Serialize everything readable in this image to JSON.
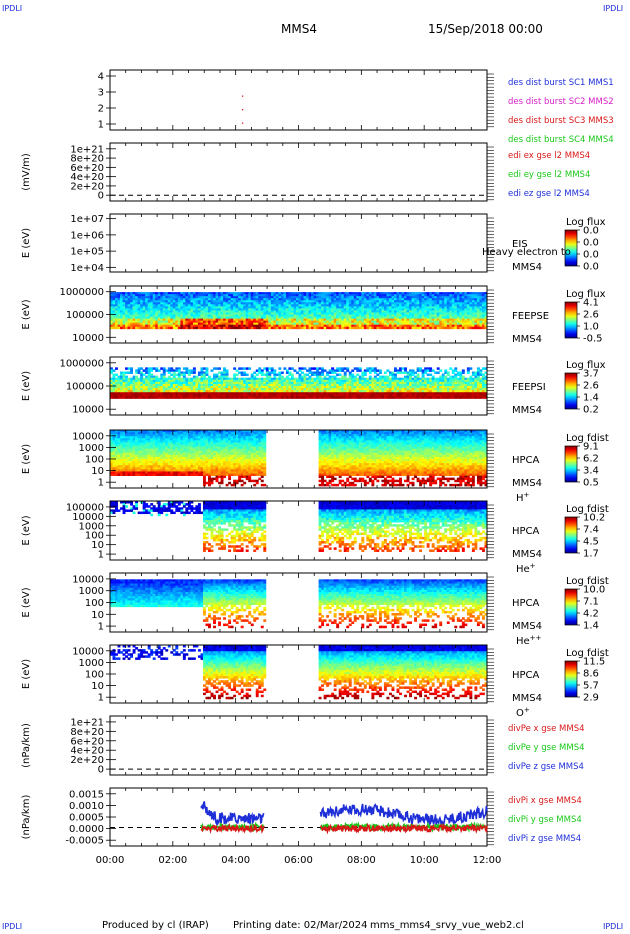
{
  "header": {
    "corner_tl": "IPDLI",
    "corner_tr": "IPDLI",
    "corner_bl": "IPDLI",
    "corner_br": "IPDLI",
    "spacecraft": "MMS4",
    "datetime": "15/Sep/2018 00:00"
  },
  "footer": {
    "produced": "Produced by cl (IRAP)",
    "printing": "Printing date: 02/Mar/2024",
    "script": "mms_mms4_srvy_vue_web2.cl"
  },
  "colors": {
    "mms1": "#1f2fd8",
    "mms2": "#d820c8",
    "mms3": "#d81818",
    "mms4": "#18c818",
    "x_comp": "#d81818",
    "y_comp": "#18c818",
    "z_comp": "#1f2fd8"
  },
  "chart_data": {
    "type": "multi-panel",
    "x_axis": {
      "ticks": [
        "00:00",
        "02:00",
        "04:00",
        "06:00",
        "08:00",
        "10:00",
        "12:00"
      ],
      "range_hours": [
        0,
        12
      ]
    },
    "panels": [
      {
        "id": "des_dist",
        "type": "scatter",
        "ylabel": "",
        "yticks": [
          "4",
          "3",
          "2",
          "1"
        ],
        "ylim": [
          0.5,
          4.5
        ],
        "legend": [
          "des dist burst SC1 MMS1",
          "des dist burst SC2 MMS2",
          "des dist burst SC3 MMS3",
          "des dist burst SC4 MMS4"
        ],
        "points": [
          {
            "x": 4.2,
            "y": 2.8
          },
          {
            "x": 4.2,
            "y": 1.9
          },
          {
            "x": 4.2,
            "y": 1.0
          }
        ]
      },
      {
        "id": "edi_e",
        "type": "line",
        "ylabel": "(mV/m)",
        "yticks": [
          "1e+21",
          "8e+20",
          "6e+20",
          "4e+20",
          "2e+20",
          "0"
        ],
        "ylim": [
          0,
          1e+21
        ],
        "legend": [
          "edi ex gse l2 MMS4",
          "edi ey gse l2 MMS4",
          "edi ez gse l2 MMS4"
        ],
        "zero_line": true
      },
      {
        "id": "eis",
        "type": "heatmap",
        "ylabel": "E (eV)",
        "yticks": [
          "1e+07",
          "1e+06",
          "1e+05",
          "1e+04"
        ],
        "labels": [
          "EIS",
          "MMS4"
        ],
        "overlay": "Heavy electron to",
        "cbar_title": "Log flux",
        "cbar_ticks": [
          "0.0",
          "0.0",
          "0.0",
          "0.0"
        ]
      },
      {
        "id": "feepse",
        "type": "heatmap",
        "ylabel": "E (eV)",
        "yticks": [
          "1000000",
          "100000",
          "10000"
        ],
        "labels": [
          "FEEPSE",
          "MMS4"
        ],
        "cbar_title": "Log flux",
        "cbar_ticks": [
          "4.1",
          "2.6",
          "1.0",
          "-0.5"
        ]
      },
      {
        "id": "feepsi",
        "type": "heatmap",
        "ylabel": "E (eV)",
        "yticks": [
          "1000000",
          "100000",
          "10000"
        ],
        "labels": [
          "FEEPSI",
          "MMS4"
        ],
        "cbar_title": "Log flux",
        "cbar_ticks": [
          "3.7",
          "2.6",
          "1.4",
          "0.2"
        ]
      },
      {
        "id": "hpca_h",
        "type": "heatmap",
        "ylabel": "E (eV)",
        "yticks": [
          "10000",
          "1000",
          "100",
          "10",
          "1"
        ],
        "labels": [
          "HPCA",
          "MMS4"
        ],
        "species": "H",
        "charge": "+",
        "cbar_title": "Log fdist",
        "cbar_ticks": [
          "9.1",
          "6.2",
          "3.4",
          "0.5"
        ],
        "data_gap_hours": [
          4.9,
          6.6
        ]
      },
      {
        "id": "hpca_he",
        "type": "heatmap",
        "ylabel": "E (eV)",
        "yticks": [
          "100000",
          "10000",
          "1000",
          "100",
          "10",
          "1"
        ],
        "labels": [
          "HPCA",
          "MMS4"
        ],
        "species": "He",
        "charge": "+",
        "cbar_title": "Log fdist",
        "cbar_ticks": [
          "10.2",
          "7.4",
          "4.5",
          "1.7"
        ],
        "data_gap_hours": [
          4.9,
          6.6
        ]
      },
      {
        "id": "hpca_he2",
        "type": "heatmap",
        "ylabel": "E (eV)",
        "yticks": [
          "10000",
          "1000",
          "100",
          "10",
          "1"
        ],
        "labels": [
          "HPCA",
          "MMS4"
        ],
        "species": "He",
        "charge": "++",
        "cbar_title": "Log fdist",
        "cbar_ticks": [
          "10.0",
          "7.1",
          "4.2",
          "1.4"
        ],
        "data_gap_hours": [
          4.9,
          6.6
        ]
      },
      {
        "id": "hpca_o",
        "type": "heatmap",
        "ylabel": "E (eV)",
        "yticks": [
          "10000",
          "1000",
          "100",
          "10",
          "1"
        ],
        "labels": [
          "HPCA",
          "MMS4"
        ],
        "species": "O",
        "charge": "+",
        "cbar_title": "Log fdist",
        "cbar_ticks": [
          "11.5",
          "8.6",
          "5.7",
          "2.9"
        ],
        "data_gap_hours": [
          4.9,
          6.6
        ]
      },
      {
        "id": "divpe",
        "type": "line",
        "ylabel": "(nPa/km)",
        "yticks": [
          "1e+21",
          "8e+20",
          "6e+20",
          "4e+20",
          "2e+20",
          "0"
        ],
        "ylim": [
          0,
          1e+21
        ],
        "legend": [
          "divPe x gse MMS4",
          "divPe y gse MMS4",
          "divPe z gse MMS4"
        ],
        "zero_line": true
      },
      {
        "id": "divpi",
        "type": "line",
        "ylabel": "(nPa/km)",
        "yticks": [
          "0.0015",
          "0.0010",
          "0.0005",
          "0.0000",
          "-0.0005"
        ],
        "ylim": [
          -0.0007,
          0.0015
        ],
        "legend": [
          "divPi x gse MMS4",
          "divPi y gse MMS4",
          "divPi z gse MMS4"
        ],
        "zero_line": true,
        "segments_hours": [
          [
            2.9,
            4.9
          ],
          [
            6.7,
            12.0
          ]
        ],
        "series_level": {
          "x": -3e-05,
          "y": 2e-05,
          "z": 0.00035
        },
        "z_peak": 0.0011
      }
    ]
  }
}
